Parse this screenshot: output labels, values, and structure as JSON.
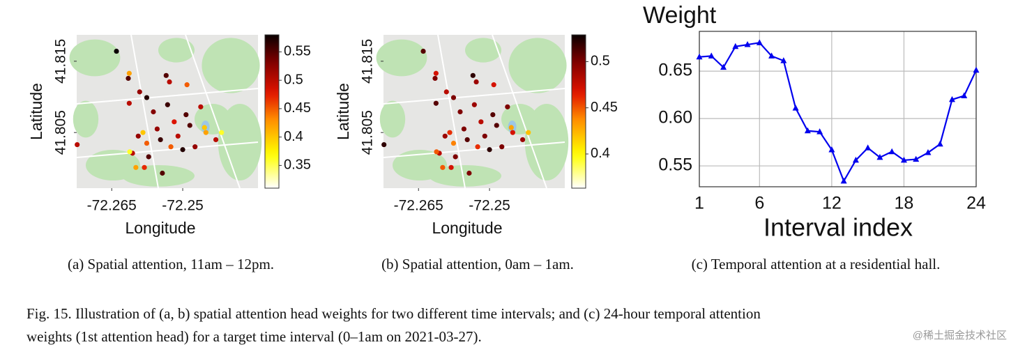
{
  "chart_data": [
    {
      "type": "scatter",
      "caption": "(a) Spatial attention, 11am – 12pm.",
      "xlabel": "Longitude",
      "ylabel": "Latitude",
      "x": [
        -72.264,
        -72.2723,
        -72.2615,
        -72.2591,
        -72.2576,
        -72.2535,
        -72.2528,
        -72.2491,
        -72.2462,
        -72.2613,
        -72.2562,
        -72.2532,
        -72.2584,
        -72.2554,
        -72.2518,
        -72.2485,
        -72.2451,
        -72.2418,
        -72.243,
        -72.25,
        -72.2474,
        -72.2525,
        -72.2606,
        -72.2599,
        -72.2581,
        -72.2543,
        -72.2594,
        -72.2547,
        -72.2576,
        -72.2613,
        -72.2454,
        -72.251,
        -72.2493,
        -72.2572,
        -72.2612
      ],
      "y": [
        41.8164,
        41.8033,
        41.8126,
        41.8107,
        41.8099,
        41.813,
        41.8121,
        41.8117,
        41.8086,
        41.8091,
        41.8079,
        41.8089,
        41.805,
        41.8055,
        41.8065,
        41.806,
        41.805,
        41.805,
        41.804,
        41.8026,
        41.803,
        41.803,
        41.8021,
        41.8001,
        41.8001,
        41.7993,
        41.8045,
        41.804,
        41.8035,
        41.8133,
        41.8057,
        41.8045,
        41.8075,
        41.8016,
        41.8023
      ],
      "values": [
        0.58,
        0.5,
        0.55,
        0.52,
        0.57,
        0.55,
        0.5,
        0.45,
        0.5,
        0.5,
        0.53,
        0.56,
        0.4,
        0.52,
        0.48,
        0.55,
        0.42,
        0.36,
        0.5,
        0.57,
        0.52,
        0.45,
        0.5,
        0.42,
        0.47,
        0.55,
        0.52,
        0.56,
        0.45,
        0.42,
        0.4,
        0.5,
        0.55,
        0.55,
        0.36
      ],
      "xlim": [
        -72.2724,
        -72.2341
      ],
      "ylim": [
        41.7972,
        41.8187
      ],
      "xticks": [
        -72.265,
        -72.25
      ],
      "yticks": [
        41.805,
        41.815
      ],
      "colormap": "hot_r",
      "clim": [
        0.31,
        0.58
      ],
      "cticks": [
        0.35,
        0.4,
        0.45,
        0.5,
        0.55
      ]
    },
    {
      "type": "scatter",
      "caption": "(b) Spatial attention, 0am – 1am.",
      "xlabel": "Longitude",
      "ylabel": "Latitude",
      "x": [
        -72.264,
        -72.2723,
        -72.2615,
        -72.2591,
        -72.2576,
        -72.2535,
        -72.2528,
        -72.2491,
        -72.2462,
        -72.2613,
        -72.2562,
        -72.2532,
        -72.2584,
        -72.2554,
        -72.2518,
        -72.2485,
        -72.2451,
        -72.2418,
        -72.243,
        -72.25,
        -72.2474,
        -72.2525,
        -72.2606,
        -72.2599,
        -72.2581,
        -72.2543,
        -72.2594,
        -72.2547,
        -72.2576,
        -72.2613,
        -72.2454,
        -72.251,
        -72.2493,
        -72.2572,
        -72.2612
      ],
      "y": [
        41.8164,
        41.8033,
        41.8126,
        41.8107,
        41.8099,
        41.813,
        41.8121,
        41.8117,
        41.8086,
        41.8091,
        41.8079,
        41.8089,
        41.805,
        41.8055,
        41.8065,
        41.806,
        41.805,
        41.805,
        41.804,
        41.8026,
        41.803,
        41.803,
        41.8021,
        41.8001,
        41.8001,
        41.7993,
        41.8045,
        41.804,
        41.8035,
        41.8133,
        41.8057,
        41.8045,
        41.8075,
        41.8016,
        41.8023
      ],
      "values": [
        0.51,
        0.52,
        0.5,
        0.48,
        0.5,
        0.52,
        0.49,
        0.47,
        0.5,
        0.51,
        0.5,
        0.49,
        0.46,
        0.5,
        0.48,
        0.51,
        0.47,
        0.42,
        0.49,
        0.52,
        0.5,
        0.46,
        0.48,
        0.45,
        0.47,
        0.5,
        0.49,
        0.51,
        0.44,
        0.47,
        0.43,
        0.5,
        0.51,
        0.5,
        0.45
      ],
      "xlim": [
        -72.2724,
        -72.2341
      ],
      "ylim": [
        41.7972,
        41.8187
      ],
      "xticks": [
        -72.265,
        -72.25
      ],
      "yticks": [
        41.805,
        41.815
      ],
      "colormap": "hot_r",
      "clim": [
        0.363,
        0.529
      ],
      "cticks": [
        0.4,
        0.45,
        0.5
      ]
    },
    {
      "type": "line",
      "caption": "(c) Temporal attention at a residential hall.",
      "ylabel": "Weight",
      "xlabel": "Interval index",
      "x": [
        1,
        2,
        3,
        4,
        5,
        6,
        7,
        8,
        9,
        10,
        11,
        12,
        13,
        14,
        15,
        16,
        17,
        18,
        19,
        20,
        21,
        22,
        23,
        24
      ],
      "series": [
        {
          "color": "#0000ee",
          "values": [
            0.665,
            0.666,
            0.654,
            0.676,
            0.678,
            0.68,
            0.666,
            0.661,
            0.611,
            0.587,
            0.586,
            0.567,
            0.534,
            0.556,
            0.569,
            0.559,
            0.565,
            0.556,
            0.557,
            0.564,
            0.573,
            0.62,
            0.624,
            0.651
          ]
        }
      ],
      "xlim": [
        1,
        24
      ],
      "ylim": [
        0.528,
        0.692
      ],
      "xticks": [
        1,
        6,
        12,
        18,
        24
      ],
      "yticks": [
        0.55,
        {
          "value": 0.6,
          "label": "0.60"
        },
        0.65
      ],
      "grid": true
    }
  ],
  "figure_caption_line1": "Fig. 15.  Illustration of (a, b) spatial attention head weights for two different time intervals; and (c) 24-hour temporal attention",
  "figure_caption_line2": "weights (1st attention head) for a target time interval (0–1am on 2021-03-27).",
  "watermark": "@稀土掘金技术社区"
}
